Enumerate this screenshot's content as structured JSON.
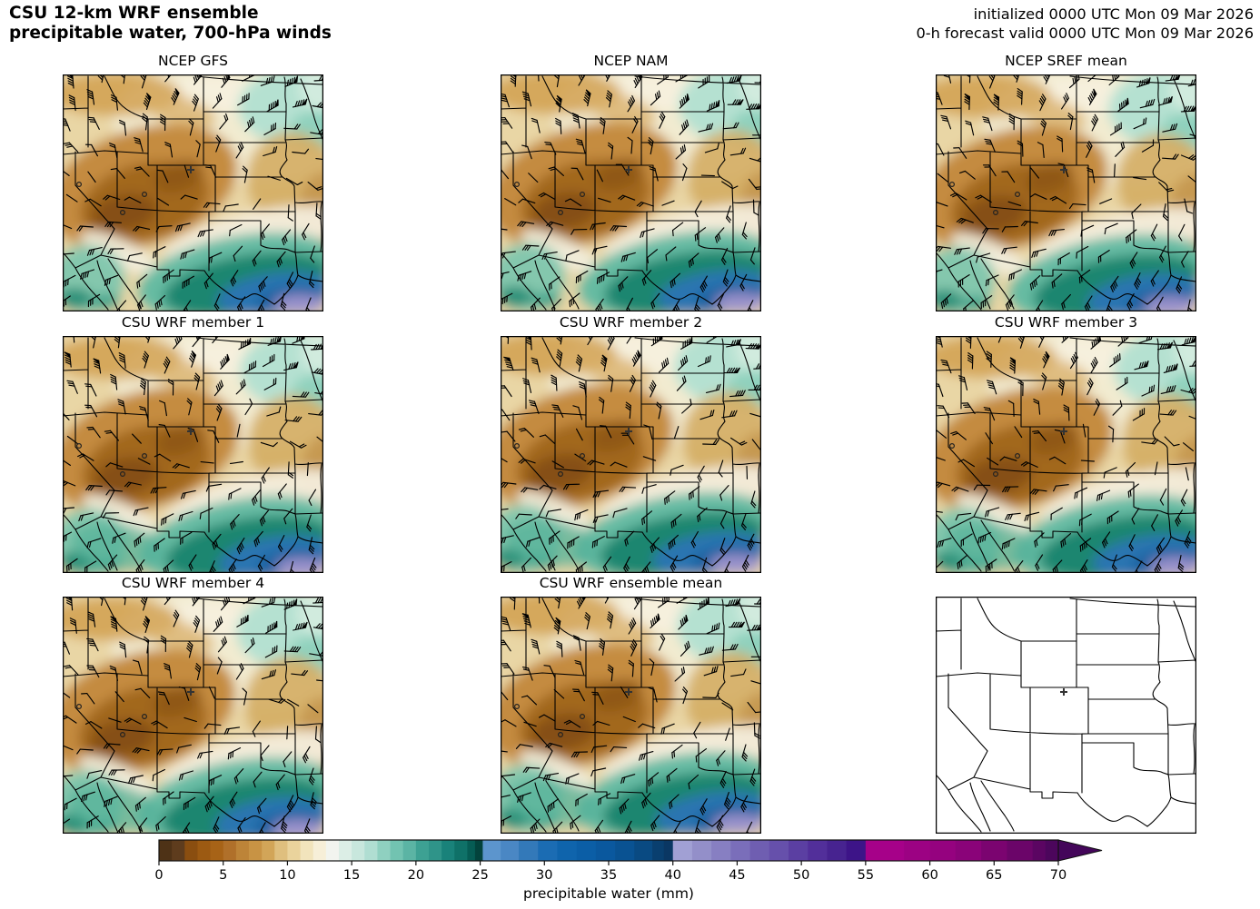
{
  "header": {
    "title_line1": "CSU 12-km WRF ensemble",
    "title_line2": "precipitable water, 700-hPa winds",
    "init_text": "initialized 0000 UTC Mon 09 Mar 2026",
    "valid_text": "0-h forecast valid 0000 UTC Mon 09 Mar 2026"
  },
  "panels": [
    {
      "title": "NCEP GFS",
      "style": "filled"
    },
    {
      "title": "NCEP NAM",
      "style": "filled"
    },
    {
      "title": "NCEP SREF mean",
      "style": "filled"
    },
    {
      "title": "CSU WRF member 1",
      "style": "filled"
    },
    {
      "title": "CSU WRF member 2",
      "style": "filled"
    },
    {
      "title": "CSU WRF member 3",
      "style": "filled"
    },
    {
      "title": "CSU WRF member 4",
      "style": "filled"
    },
    {
      "title": "CSU WRF ensemble mean",
      "style": "filled"
    },
    {
      "title": "",
      "style": "outline"
    }
  ],
  "chart_data": {
    "type": "heatmap",
    "title": "CSU 12-km WRF ensemble precipitable water, 700-hPa winds",
    "initialized": "0000 UTC Mon 09 Mar 2026",
    "forecast": "0-h forecast valid 0000 UTC Mon 09 Mar 2026",
    "panel_titles": [
      "NCEP GFS",
      "NCEP NAM",
      "NCEP SREF mean",
      "CSU WRF member 1",
      "CSU WRF member 2",
      "CSU WRF member 3",
      "CSU WRF member 4",
      "CSU WRF ensemble mean",
      ""
    ],
    "grid": "3x3, bottom-right panel shows blank state-outline map with cross marker in northern Colorado",
    "overlays": [
      "700-hPa wind barbs",
      "US state boundaries",
      "cross marker northern Colorado",
      "small circle station markers"
    ],
    "region": "western and central United States with northern Mexico",
    "field_summary": {
      "dry_minimum_mm": "0-8 over interior Southwest (UT/CO/AZ/NM)",
      "pale_band_mm": "10-14 over northern plains",
      "upper_midwest_mm": "14-18 (teal, MN/eastern Dakotas)",
      "moist_plume_mm": "20-45+ arc over southern Texas / Gulf, purple core >40"
    },
    "colorbar": {
      "label": "precipitable water (mm)",
      "units": "mm",
      "orientation": "horizontal",
      "arrow_end": "right",
      "ticks": [
        0,
        5,
        10,
        15,
        20,
        25,
        30,
        35,
        40,
        45,
        50,
        55,
        60,
        65,
        70
      ],
      "range": [
        0,
        72.5
      ],
      "stops": [
        {
          "v": 0,
          "c": "#4e3216"
        },
        {
          "v": 1,
          "c": "#5e3c1d"
        },
        {
          "v": 2,
          "c": "#8a4e10"
        },
        {
          "v": 3,
          "c": "#9c5a12"
        },
        {
          "v": 4,
          "c": "#a76317"
        },
        {
          "v": 5,
          "c": "#b0702a"
        },
        {
          "v": 6,
          "c": "#bd8438"
        },
        {
          "v": 7,
          "c": "#c89344"
        },
        {
          "v": 8,
          "c": "#d2a558"
        },
        {
          "v": 9,
          "c": "#dfbf7e"
        },
        {
          "v": 10,
          "c": "#ead39c"
        },
        {
          "v": 11,
          "c": "#f2e4bc"
        },
        {
          "v": 12,
          "c": "#f7efd8"
        },
        {
          "v": 13,
          "c": "#f2f4ef"
        },
        {
          "v": 14,
          "c": "#dceee6"
        },
        {
          "v": 15,
          "c": "#c8e7dd"
        },
        {
          "v": 16,
          "c": "#b0ded2"
        },
        {
          "v": 17,
          "c": "#8fd0c0"
        },
        {
          "v": 18,
          "c": "#72c3b1"
        },
        {
          "v": 19,
          "c": "#5bb4a4"
        },
        {
          "v": 20,
          "c": "#3da193"
        },
        {
          "v": 21,
          "c": "#2f9489"
        },
        {
          "v": 22,
          "c": "#19827a"
        },
        {
          "v": 23,
          "c": "#0f7168"
        },
        {
          "v": 24,
          "c": "#065c54"
        },
        {
          "v": 24.6,
          "c": "#03433c"
        },
        {
          "v": 25.2,
          "c": "#5c95cd"
        },
        {
          "v": 26.6,
          "c": "#4a87c4"
        },
        {
          "v": 28,
          "c": "#3379b9"
        },
        {
          "v": 29.5,
          "c": "#1b6cb3"
        },
        {
          "v": 31,
          "c": "#0f64ac"
        },
        {
          "v": 32.5,
          "c": "#0b5ea6"
        },
        {
          "v": 34,
          "c": "#0a589e"
        },
        {
          "v": 35.5,
          "c": "#095292"
        },
        {
          "v": 37,
          "c": "#094a82"
        },
        {
          "v": 38.4,
          "c": "#093f6f"
        },
        {
          "v": 39.3,
          "c": "#0a3763"
        },
        {
          "v": 40,
          "c": "#a1a0d4"
        },
        {
          "v": 41.5,
          "c": "#938fc9"
        },
        {
          "v": 43,
          "c": "#877fc2"
        },
        {
          "v": 44.5,
          "c": "#7a6eba"
        },
        {
          "v": 46,
          "c": "#6f5eb1"
        },
        {
          "v": 47.5,
          "c": "#6650ab"
        },
        {
          "v": 49,
          "c": "#5b3fa2"
        },
        {
          "v": 50.5,
          "c": "#522f9a"
        },
        {
          "v": 52,
          "c": "#472390"
        },
        {
          "v": 53.5,
          "c": "#3d1488"
        },
        {
          "v": 55,
          "c": "#a60189"
        },
        {
          "v": 58,
          "c": "#9c0283"
        },
        {
          "v": 60,
          "c": "#95027f"
        },
        {
          "v": 62,
          "c": "#8a0379"
        },
        {
          "v": 64,
          "c": "#7b0470"
        },
        {
          "v": 66,
          "c": "#6b0569"
        },
        {
          "v": 68,
          "c": "#5b0562"
        },
        {
          "v": 69,
          "c": "#4c065c"
        },
        {
          "v": 70,
          "c": "#44065a"
        }
      ]
    }
  }
}
